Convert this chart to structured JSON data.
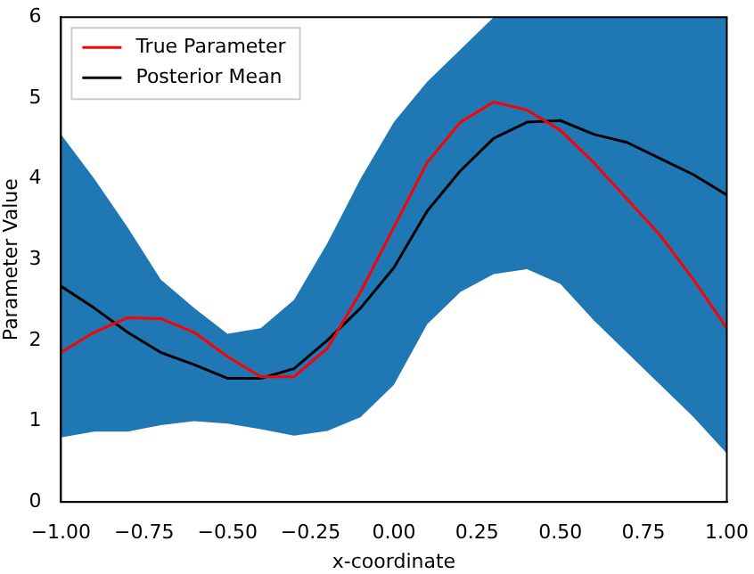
{
  "chart_data": {
    "type": "line",
    "xlabel": "x-coordinate",
    "ylabel": "Parameter Value",
    "x": [
      -1.0,
      -0.9,
      -0.8,
      -0.7,
      -0.6,
      -0.5,
      -0.4,
      -0.3,
      -0.2,
      -0.1,
      0.0,
      0.1,
      0.2,
      0.3,
      0.4,
      0.5,
      0.6,
      0.7,
      0.8,
      0.9,
      1.0
    ],
    "series": [
      {
        "name": "True Parameter",
        "color": "#ff0000",
        "values": [
          1.85,
          2.1,
          2.28,
          2.27,
          2.1,
          1.8,
          1.55,
          1.55,
          1.9,
          2.6,
          3.4,
          4.2,
          4.7,
          4.95,
          4.85,
          4.6,
          4.2,
          3.75,
          3.3,
          2.75,
          2.15
        ]
      },
      {
        "name": "Posterior Mean",
        "color": "#000000",
        "values": [
          2.67,
          2.4,
          2.1,
          1.85,
          1.7,
          1.53,
          1.53,
          1.65,
          2.0,
          2.4,
          2.9,
          3.6,
          4.1,
          4.5,
          4.7,
          4.72,
          4.55,
          4.45,
          4.25,
          4.05,
          3.8
        ],
        "lower": [
          0.8,
          0.87,
          0.87,
          0.95,
          1.0,
          0.97,
          0.9,
          0.82,
          0.88,
          1.05,
          1.45,
          2.2,
          2.6,
          2.82,
          2.88,
          2.7,
          2.25,
          1.85,
          1.45,
          1.05,
          0.6
        ],
        "upper": [
          4.55,
          4.0,
          3.4,
          2.75,
          2.4,
          2.08,
          2.15,
          2.5,
          3.2,
          4.0,
          4.7,
          5.2,
          5.6,
          6,
          6,
          6,
          6,
          6,
          6,
          6,
          6
        ]
      }
    ],
    "xlim": [
      -1,
      1
    ],
    "ylim": [
      0,
      6
    ],
    "xticks": [
      {
        "value": -1,
        "label": "−1.00"
      },
      {
        "value": -0.75,
        "label": "−0.75"
      },
      {
        "value": -0.5,
        "label": "−0.50"
      },
      {
        "value": -0.25,
        "label": "−0.25"
      },
      {
        "value": 0,
        "label": "0.00"
      },
      {
        "value": 0.25,
        "label": "0.25"
      },
      {
        "value": 0.5,
        "label": "0.50"
      },
      {
        "value": 0.75,
        "label": "0.75"
      },
      {
        "value": 1,
        "label": "1.00"
      }
    ],
    "yticks": [
      0,
      1,
      2,
      3,
      4,
      5,
      6
    ],
    "legend": "top left",
    "grid": false,
    "line_style": "solid"
  }
}
